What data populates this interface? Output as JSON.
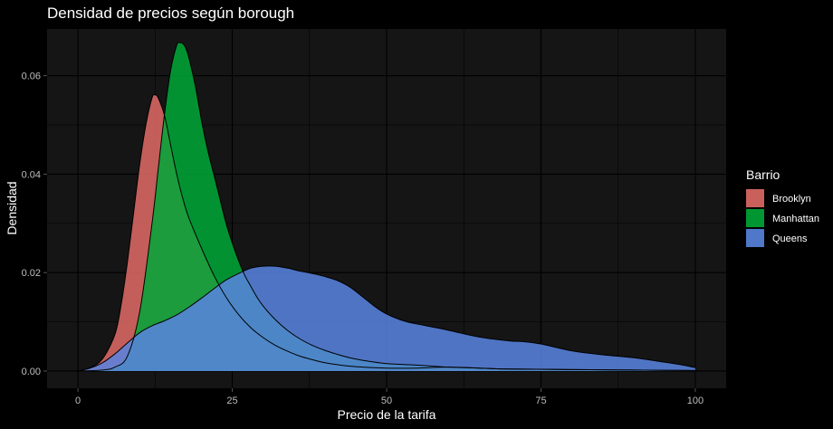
{
  "chart_data": {
    "type": "area",
    "title": "Densidad de precios según borough",
    "xlabel": "Precio de la tarifa",
    "ylabel": "Densidad",
    "xlim": [
      -5,
      105
    ],
    "ylim": [
      -0.0035,
      0.0695
    ],
    "x_ticks": [
      0,
      25,
      50,
      75,
      100
    ],
    "x_tick_labels": [
      "0",
      "25",
      "50",
      "75",
      "100"
    ],
    "y_ticks": [
      0.0,
      0.02,
      0.04,
      0.06
    ],
    "y_tick_labels": [
      "0.00",
      "0.02",
      "0.04",
      "0.06"
    ],
    "grid": true,
    "legend": {
      "title": "Barrio",
      "position": "right"
    },
    "series": [
      {
        "name": "Brooklyn",
        "color": "#e06a65",
        "x": [
          0,
          2,
          4,
          6,
          7,
          8,
          9,
          10,
          11,
          12,
          12.5,
          13,
          14,
          15,
          16,
          17,
          18,
          20,
          22,
          24,
          26,
          28,
          30,
          32,
          34,
          36,
          38,
          40,
          42,
          45,
          50,
          55,
          60,
          65,
          70,
          80,
          90,
          100
        ],
        "y": [
          0.0,
          0.0007,
          0.0025,
          0.0075,
          0.0135,
          0.022,
          0.032,
          0.042,
          0.05,
          0.0555,
          0.0561,
          0.0555,
          0.052,
          0.046,
          0.04,
          0.035,
          0.031,
          0.025,
          0.0195,
          0.015,
          0.0115,
          0.0088,
          0.0068,
          0.0052,
          0.004,
          0.003,
          0.0023,
          0.0017,
          0.0013,
          0.0009,
          0.0006,
          0.0006,
          0.0008,
          0.0006,
          0.0004,
          0.0003,
          0.0002,
          0.0001
        ]
      },
      {
        "name": "Manhattan",
        "color": "#00a737",
        "x": [
          0,
          4,
          6,
          8,
          10,
          12,
          13,
          14,
          15,
          16,
          16.5,
          17,
          17.5,
          18,
          19,
          20,
          21,
          22,
          23,
          24,
          25,
          26,
          27,
          28,
          29,
          30,
          32,
          34,
          36,
          38,
          40,
          42,
          44,
          46,
          50,
          55,
          60,
          65,
          70,
          80,
          90,
          100
        ],
        "y": [
          0.0,
          0.0002,
          0.0008,
          0.003,
          0.012,
          0.03,
          0.041,
          0.052,
          0.061,
          0.0662,
          0.0667,
          0.0665,
          0.0655,
          0.0635,
          0.058,
          0.051,
          0.045,
          0.04,
          0.035,
          0.03,
          0.026,
          0.0225,
          0.0195,
          0.0172,
          0.015,
          0.0132,
          0.0104,
          0.0082,
          0.0065,
          0.0052,
          0.0042,
          0.0034,
          0.0027,
          0.0022,
          0.0015,
          0.0012,
          0.0008,
          0.0006,
          0.0004,
          0.0003,
          0.0002,
          0.0001
        ]
      },
      {
        "name": "Queens",
        "color": "#5884e0",
        "x": [
          0,
          2,
          4,
          6,
          8,
          10,
          12,
          14,
          16,
          18,
          20,
          22,
          24,
          26,
          28,
          30,
          32,
          34,
          36,
          38,
          40,
          42,
          44,
          46,
          48,
          50,
          53,
          56,
          60,
          65,
          70,
          72,
          75,
          80,
          85,
          90,
          95,
          98,
          100
        ],
        "y": [
          0.0,
          0.0006,
          0.0017,
          0.0035,
          0.0057,
          0.0078,
          0.0092,
          0.0102,
          0.0114,
          0.013,
          0.0148,
          0.0167,
          0.0185,
          0.0198,
          0.0209,
          0.0213,
          0.0213,
          0.0209,
          0.0203,
          0.0198,
          0.0192,
          0.0184,
          0.0171,
          0.0152,
          0.0132,
          0.0116,
          0.0101,
          0.0093,
          0.0083,
          0.0069,
          0.0061,
          0.006,
          0.0055,
          0.0041,
          0.0033,
          0.0027,
          0.0018,
          0.0012,
          0.0007
        ]
      }
    ]
  }
}
